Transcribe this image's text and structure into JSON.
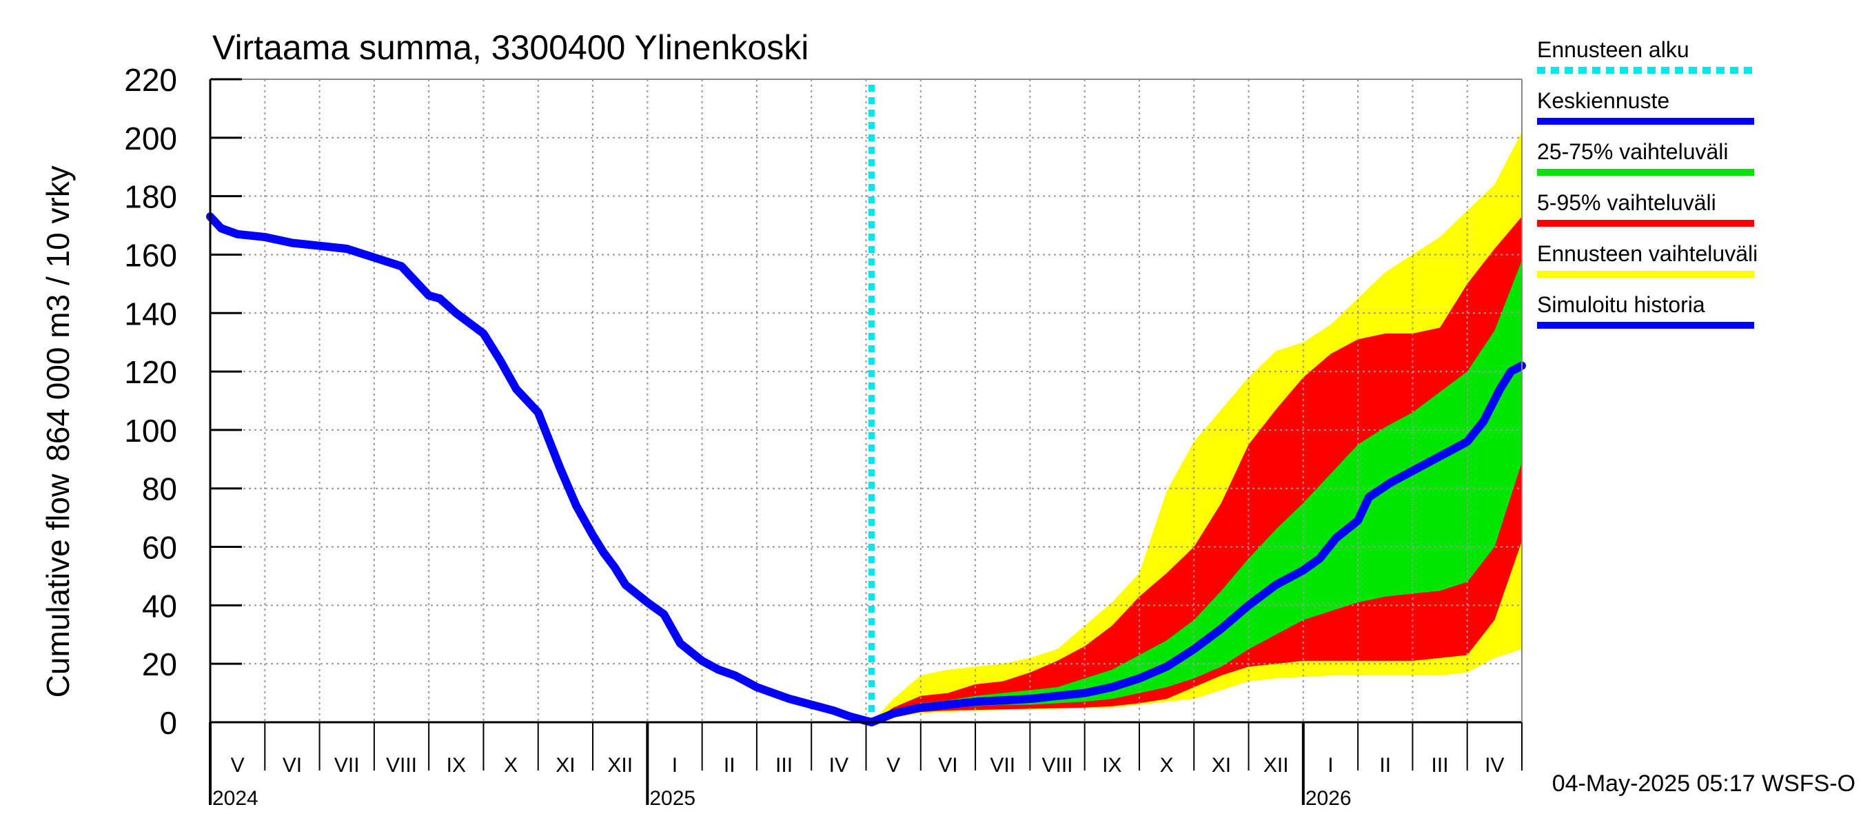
{
  "chart_data": {
    "type": "area",
    "title": "Virtaama summa, 3300400 Ylinenkoski",
    "ylabel_lines": [
      "Cumulative flow",
      "864 000 m3 / 10 vrky"
    ],
    "ylim": [
      0,
      220
    ],
    "yticks": [
      0,
      20,
      40,
      60,
      80,
      100,
      120,
      140,
      160,
      180,
      200,
      220
    ],
    "grid": true,
    "xlim": [
      0,
      24
    ],
    "x_units": "months from start of May 2024",
    "months": [
      {
        "label": "V",
        "x": 0.5
      },
      {
        "label": "VI",
        "x": 1.5
      },
      {
        "label": "VII",
        "x": 2.5
      },
      {
        "label": "VIII",
        "x": 3.5
      },
      {
        "label": "IX",
        "x": 4.5
      },
      {
        "label": "X",
        "x": 5.5
      },
      {
        "label": "XI",
        "x": 6.5
      },
      {
        "label": "XII",
        "x": 7.5
      },
      {
        "label": "I",
        "x": 8.5
      },
      {
        "label": "II",
        "x": 9.5
      },
      {
        "label": "III",
        "x": 10.5
      },
      {
        "label": "IV",
        "x": 11.5
      },
      {
        "label": "V",
        "x": 12.5
      },
      {
        "label": "VI",
        "x": 13.5
      },
      {
        "label": "VII",
        "x": 14.5
      },
      {
        "label": "VIII",
        "x": 15.5
      },
      {
        "label": "IX",
        "x": 16.5
      },
      {
        "label": "X",
        "x": 17.5
      },
      {
        "label": "XI",
        "x": 18.5
      },
      {
        "label": "XII",
        "x": 19.5
      },
      {
        "label": "I",
        "x": 20.5
      },
      {
        "label": "II",
        "x": 21.5
      },
      {
        "label": "III",
        "x": 22.5
      },
      {
        "label": "IV",
        "x": 23.5
      }
    ],
    "years": [
      {
        "label": "2024",
        "x": 0
      },
      {
        "label": "2025",
        "x": 8
      },
      {
        "label": "2026",
        "x": 20
      }
    ],
    "forecast_start_x": 12.1,
    "legend": [
      {
        "label": "Ennusteen alku",
        "color": "#00e5ee",
        "style": "dotted"
      },
      {
        "label": "Keskiennuste",
        "color": "#0000ff",
        "style": "solid"
      },
      {
        "label": "25-75% vaihteluväli",
        "color": "#00e600",
        "style": "solid"
      },
      {
        "label": "5-95% vaihteluväli",
        "color": "#ff0000",
        "style": "solid"
      },
      {
        "label": "Ennusteen vaihteluväli",
        "color": "#ffff00",
        "style": "solid"
      },
      {
        "label": "Simuloitu historia",
        "color": "#0000ff",
        "style": "solid"
      }
    ],
    "series": [
      {
        "name": "Simuloitu historia",
        "color": "#0000ff",
        "x": [
          0,
          0.2,
          0.5,
          1,
          1.5,
          2,
          2.5,
          3,
          3.5,
          4,
          4.2,
          4.5,
          5,
          5.3,
          5.6,
          6,
          6.4,
          6.7,
          7,
          7.2,
          7.4,
          7.6,
          8,
          8.3,
          8.6,
          9,
          9.3,
          9.6,
          10,
          10.3,
          10.6,
          11,
          11.4,
          11.7,
          12,
          12.1
        ],
        "values": [
          173,
          169,
          167,
          166,
          164,
          163,
          162,
          159,
          156,
          146,
          145,
          140,
          133,
          124,
          114,
          106,
          87,
          74,
          64,
          58,
          53,
          47,
          41,
          37,
          27,
          21,
          18,
          16,
          12,
          10,
          8,
          6,
          4,
          2,
          0.5,
          0
        ]
      },
      {
        "name": "Keskiennuste",
        "color": "#0000ff",
        "x": [
          12.1,
          12.5,
          13,
          13.5,
          14,
          14.5,
          15,
          15.5,
          16,
          16.5,
          17,
          17.5,
          18,
          18.5,
          19,
          19.5,
          20,
          20.3,
          20.6,
          21,
          21.2,
          21.6,
          22,
          22.4,
          22.8,
          23,
          23.3,
          23.6,
          23.8,
          24
        ],
        "values": [
          0,
          3,
          5,
          6,
          7,
          7.5,
          8,
          9,
          10,
          12,
          15,
          19,
          25,
          32,
          40,
          47,
          52,
          56,
          63,
          69,
          77,
          82,
          86,
          90,
          94,
          96,
          103,
          114,
          120,
          122
        ]
      }
    ],
    "bands": [
      {
        "name": "Ennusteen vaihteluväli",
        "color": "#ffff00",
        "x": [
          12.1,
          12.5,
          13,
          13.5,
          14,
          14.5,
          15,
          15.5,
          16,
          16.5,
          17,
          17.5,
          18,
          18.5,
          19,
          19.5,
          20,
          20.5,
          21,
          21.5,
          22,
          22.5,
          23,
          23.5,
          24
        ],
        "upper": [
          0,
          8,
          16,
          18,
          19,
          20,
          22,
          25,
          33,
          41,
          51,
          79,
          96,
          107,
          118,
          127,
          130,
          136,
          145,
          154,
          160,
          166,
          175,
          184,
          202
        ],
        "lower": [
          0,
          1.5,
          3,
          3.5,
          4,
          4.2,
          4.4,
          4.6,
          4.8,
          5,
          6,
          7,
          8,
          11,
          14,
          15,
          15.5,
          16,
          16,
          16,
          16,
          16,
          17,
          22,
          25
        ]
      },
      {
        "name": "5-95% vaihteluväli",
        "color": "#ff0000",
        "x": [
          12.1,
          12.5,
          13,
          13.5,
          14,
          14.5,
          15,
          15.5,
          16,
          16.5,
          17,
          17.5,
          18,
          18.5,
          19,
          19.5,
          20,
          20.5,
          21,
          21.5,
          22,
          22.5,
          23,
          23.5,
          24
        ],
        "upper": [
          0,
          5,
          9,
          10,
          13,
          14,
          17,
          21,
          26,
          33,
          43,
          51,
          60,
          75,
          95,
          107,
          118,
          126,
          131,
          133,
          133,
          135,
          150,
          162,
          173
        ],
        "lower": [
          0,
          2,
          3.5,
          4,
          4.2,
          4.4,
          4.6,
          4.8,
          5,
          5.5,
          6.5,
          8,
          12,
          16,
          19,
          20,
          21,
          21,
          21,
          21,
          21,
          22,
          23,
          35,
          62
        ]
      },
      {
        "name": "25-75% vaihteluväli",
        "color": "#00e600",
        "x": [
          12.1,
          12.5,
          13,
          13.5,
          14,
          14.5,
          15,
          15.5,
          16,
          16.5,
          17,
          17.5,
          18,
          18.5,
          19,
          19.5,
          20,
          20.5,
          21,
          21.5,
          22,
          22.5,
          23,
          23.5,
          24
        ],
        "upper": [
          0,
          4,
          6.5,
          7.5,
          9,
          10,
          11,
          12,
          15,
          18,
          23,
          28,
          35,
          45,
          56,
          66,
          75,
          85,
          95,
          101,
          106,
          113,
          120,
          134,
          158
        ],
        "lower": [
          0,
          2.5,
          4,
          5,
          5.5,
          6,
          6,
          6.5,
          7,
          8,
          10,
          12,
          15,
          19,
          25,
          30,
          35,
          38,
          41,
          43,
          44,
          45,
          48,
          60,
          89
        ]
      }
    ]
  },
  "footer": {
    "timestamp": "04-May-2025 05:17 WSFS-O"
  }
}
